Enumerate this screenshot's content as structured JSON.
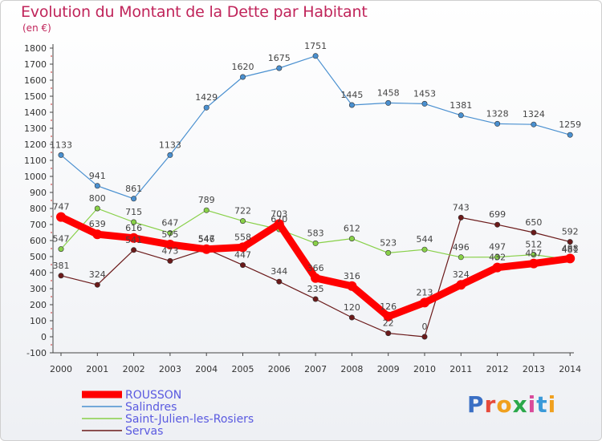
{
  "header": {
    "title": "Evolution du Montant de la Dette par Habitant",
    "subtitle": "(en €)"
  },
  "colors": {
    "title": "#c0245a",
    "legend_text": "#5a5ae0",
    "axis": "#333333"
  },
  "chart_data": {
    "type": "line",
    "title": "Evolution du Montant de la Dette par Habitant",
    "ylabel": "(en €)",
    "xlabel": "",
    "ylim": [
      -100,
      1800
    ],
    "yticks": [
      -100,
      0,
      100,
      200,
      300,
      400,
      500,
      600,
      700,
      800,
      900,
      1000,
      1100,
      1200,
      1300,
      1400,
      1500,
      1600,
      1700,
      1800
    ],
    "categories": [
      "2000",
      "2001",
      "2002",
      "2003",
      "2004",
      "2005",
      "2006",
      "2007",
      "2008",
      "2009",
      "2010",
      "2011",
      "2012",
      "2013",
      "2014"
    ],
    "grid": false,
    "legend_position": "bottom-left",
    "series": [
      {
        "name": "ROUSSON",
        "color": "#ff0000",
        "values": [
          747,
          639,
          616,
          575,
          546,
          558,
          703,
          366,
          316,
          126,
          213,
          324,
          432,
          457,
          488
        ]
      },
      {
        "name": "Salindres",
        "color": "#4a90d0",
        "values": [
          1133,
          941,
          861,
          1133,
          1429,
          1620,
          1675,
          1751,
          1445,
          1458,
          1453,
          1381,
          1328,
          1324,
          1259
        ]
      },
      {
        "name": "Saint-Julien-les-Rosiers",
        "color": "#88d048",
        "values": [
          547,
          800,
          715,
          647,
          789,
          722,
          670,
          583,
          612,
          523,
          544,
          496,
          497,
          512,
          481
        ]
      },
      {
        "name": "Servas",
        "color": "#6b1a1a",
        "values": [
          381,
          324,
          541,
          473,
          547,
          447,
          344,
          235,
          120,
          22,
          0,
          743,
          699,
          650,
          592
        ]
      }
    ]
  },
  "logo": {
    "letters": [
      "P",
      "r",
      "o",
      "x",
      "i",
      "t",
      "i"
    ]
  }
}
